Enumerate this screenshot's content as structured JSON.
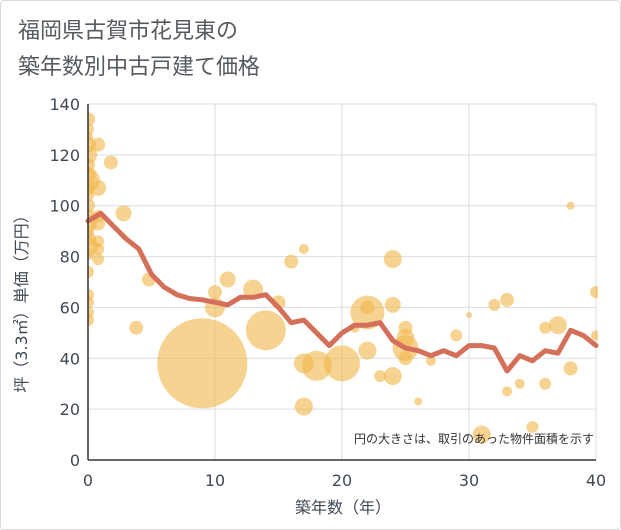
{
  "header": {
    "title_line1": "福岡県古賀市花見東の",
    "title_line2": "築年数別中古戸建て価格"
  },
  "colors": {
    "bubble": "#f0b84e",
    "line": "#d4705a",
    "grid": "#d6dde3",
    "axis_text": "#3f4a55"
  },
  "chart_data": {
    "type": "scatter",
    "title": "福岡県古賀市花見東の築年数別中古戸建て価格",
    "xlabel": "築年数（年）",
    "ylabel": "坪（3.3㎡）単価（万円）",
    "xlim": [
      0,
      40
    ],
    "ylim": [
      0,
      140
    ],
    "xticks": [
      0,
      10,
      20,
      30,
      40
    ],
    "yticks": [
      0,
      20,
      40,
      60,
      80,
      100,
      120,
      140
    ],
    "grid": true,
    "note": "円の大きさは、取引のあった物件面積を示す",
    "bubbles": [
      {
        "x": 0,
        "y": 134,
        "r": 7
      },
      {
        "x": 0,
        "y": 130,
        "r": 6
      },
      {
        "x": 0,
        "y": 127,
        "r": 5
      },
      {
        "x": 0,
        "y": 124,
        "r": 8
      },
      {
        "x": 0,
        "y": 120,
        "r": 9
      },
      {
        "x": 0,
        "y": 116,
        "r": 7
      },
      {
        "x": 0,
        "y": 112,
        "r": 8
      },
      {
        "x": 0,
        "y": 110,
        "r": 12
      },
      {
        "x": 0,
        "y": 107,
        "r": 7
      },
      {
        "x": 0,
        "y": 104,
        "r": 6
      },
      {
        "x": 0,
        "y": 100,
        "r": 7
      },
      {
        "x": 0,
        "y": 96,
        "r": 7
      },
      {
        "x": 0,
        "y": 93,
        "r": 9
      },
      {
        "x": 0,
        "y": 90,
        "r": 6
      },
      {
        "x": 0,
        "y": 87,
        "r": 8
      },
      {
        "x": 0,
        "y": 84,
        "r": 10
      },
      {
        "x": 0,
        "y": 81,
        "r": 6
      },
      {
        "x": 0,
        "y": 74,
        "r": 6
      },
      {
        "x": 0,
        "y": 65,
        "r": 6
      },
      {
        "x": 0,
        "y": 62,
        "r": 6
      },
      {
        "x": 0,
        "y": 58,
        "r": 6
      },
      {
        "x": 0,
        "y": 55,
        "r": 6
      },
      {
        "x": 0.8,
        "y": 124,
        "r": 7
      },
      {
        "x": 0.8,
        "y": 107,
        "r": 8
      },
      {
        "x": 0.8,
        "y": 96,
        "r": 6
      },
      {
        "x": 0.8,
        "y": 93,
        "r": 7
      },
      {
        "x": 0.8,
        "y": 86,
        "r": 6
      },
      {
        "x": 0.8,
        "y": 83,
        "r": 6
      },
      {
        "x": 0.8,
        "y": 79,
        "r": 6
      },
      {
        "x": 1.8,
        "y": 117,
        "r": 7
      },
      {
        "x": 2.8,
        "y": 97,
        "r": 8
      },
      {
        "x": 3.8,
        "y": 52,
        "r": 7
      },
      {
        "x": 4.8,
        "y": 71,
        "r": 7
      },
      {
        "x": 9,
        "y": 38,
        "r": 45
      },
      {
        "x": 10,
        "y": 60,
        "r": 10
      },
      {
        "x": 10,
        "y": 66,
        "r": 7
      },
      {
        "x": 11,
        "y": 71,
        "r": 8
      },
      {
        "x": 13,
        "y": 67,
        "r": 10
      },
      {
        "x": 14,
        "y": 51,
        "r": 20
      },
      {
        "x": 15,
        "y": 62,
        "r": 7
      },
      {
        "x": 16,
        "y": 78,
        "r": 7
      },
      {
        "x": 17,
        "y": 83,
        "r": 5
      },
      {
        "x": 17,
        "y": 38,
        "r": 10
      },
      {
        "x": 17,
        "y": 21,
        "r": 9
      },
      {
        "x": 18,
        "y": 37,
        "r": 15
      },
      {
        "x": 20,
        "y": 38,
        "r": 18
      },
      {
        "x": 21,
        "y": 52,
        "r": 5
      },
      {
        "x": 22,
        "y": 58,
        "r": 17
      },
      {
        "x": 22,
        "y": 43,
        "r": 9
      },
      {
        "x": 22,
        "y": 60,
        "r": 7
      },
      {
        "x": 23,
        "y": 33,
        "r": 6
      },
      {
        "x": 24,
        "y": 79,
        "r": 9
      },
      {
        "x": 24,
        "y": 61,
        "r": 8
      },
      {
        "x": 24,
        "y": 33,
        "r": 9
      },
      {
        "x": 25,
        "y": 52,
        "r": 7
      },
      {
        "x": 25,
        "y": 48,
        "r": 9
      },
      {
        "x": 25,
        "y": 44,
        "r": 13
      },
      {
        "x": 25,
        "y": 40,
        "r": 7
      },
      {
        "x": 26,
        "y": 23,
        "r": 4
      },
      {
        "x": 27,
        "y": 39,
        "r": 5
      },
      {
        "x": 29,
        "y": 49,
        "r": 6
      },
      {
        "x": 30,
        "y": 57,
        "r": 3
      },
      {
        "x": 31,
        "y": 10,
        "r": 9
      },
      {
        "x": 32,
        "y": 61,
        "r": 6
      },
      {
        "x": 33,
        "y": 63,
        "r": 7
      },
      {
        "x": 33,
        "y": 27,
        "r": 5
      },
      {
        "x": 34,
        "y": 30,
        "r": 5
      },
      {
        "x": 35,
        "y": 13,
        "r": 6
      },
      {
        "x": 36,
        "y": 52,
        "r": 6
      },
      {
        "x": 36,
        "y": 30,
        "r": 6
      },
      {
        "x": 37,
        "y": 53,
        "r": 9
      },
      {
        "x": 38,
        "y": 100,
        "r": 4
      },
      {
        "x": 38,
        "y": 36,
        "r": 7
      },
      {
        "x": 40,
        "y": 66,
        "r": 6
      },
      {
        "x": 40,
        "y": 49,
        "r": 5
      }
    ],
    "series": [
      {
        "x": [
          0,
          1,
          2,
          3,
          4,
          5,
          6,
          7,
          8,
          9,
          10,
          11,
          12,
          13,
          14,
          15,
          16,
          17,
          18,
          19,
          20,
          21,
          22,
          23,
          24,
          25,
          26,
          27,
          28,
          29,
          30,
          31,
          32,
          33,
          34,
          35,
          36,
          37,
          38,
          39,
          40
        ],
        "values": [
          94,
          97,
          92,
          87,
          83,
          73,
          68,
          65,
          63.5,
          63,
          62,
          61,
          64,
          64,
          65,
          60,
          54,
          55,
          50,
          45,
          50,
          53,
          53,
          54,
          47,
          44,
          43,
          41,
          43,
          41,
          45,
          45,
          44,
          35,
          41,
          39,
          43,
          42,
          51,
          49,
          45
        ]
      }
    ]
  }
}
